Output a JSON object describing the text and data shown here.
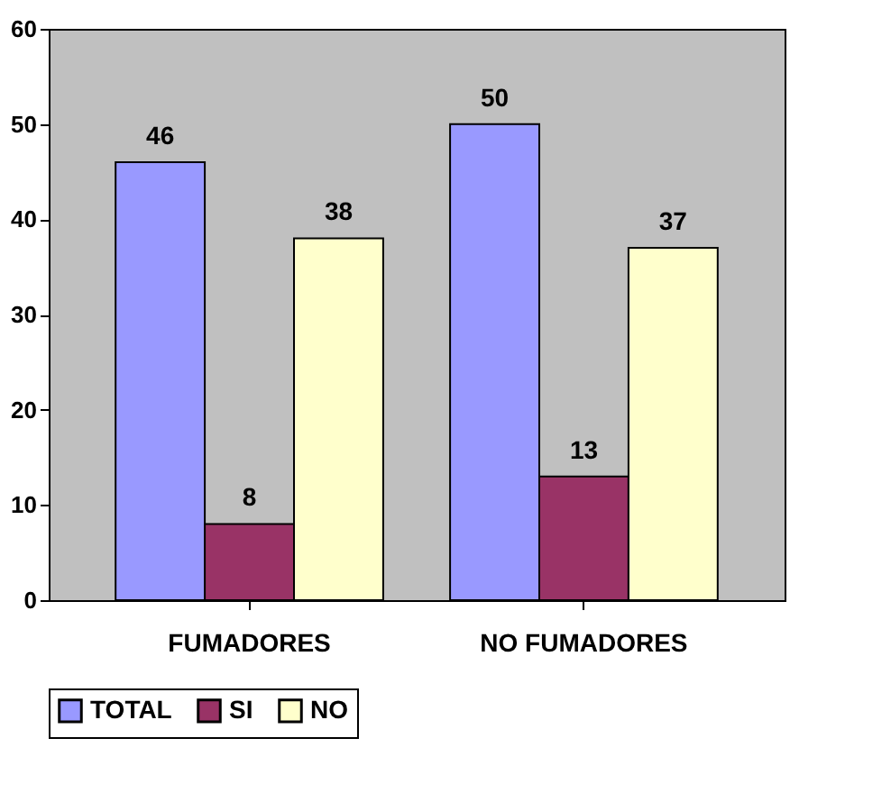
{
  "chart_data": {
    "type": "bar",
    "categories": [
      "FUMADORES",
      "NO FUMADORES"
    ],
    "series": [
      {
        "name": "TOTAL",
        "color": "#9999ff",
        "values": [
          46,
          50
        ]
      },
      {
        "name": "SI",
        "color": "#993366",
        "values": [
          8,
          13
        ]
      },
      {
        "name": "NO",
        "color": "#ffffcc",
        "values": [
          38,
          37
        ]
      }
    ],
    "ylim": [
      0,
      60
    ],
    "yticks": [
      0,
      10,
      20,
      30,
      40,
      50,
      60
    ],
    "data_labels": true,
    "grid": false,
    "legend": "bottom"
  }
}
